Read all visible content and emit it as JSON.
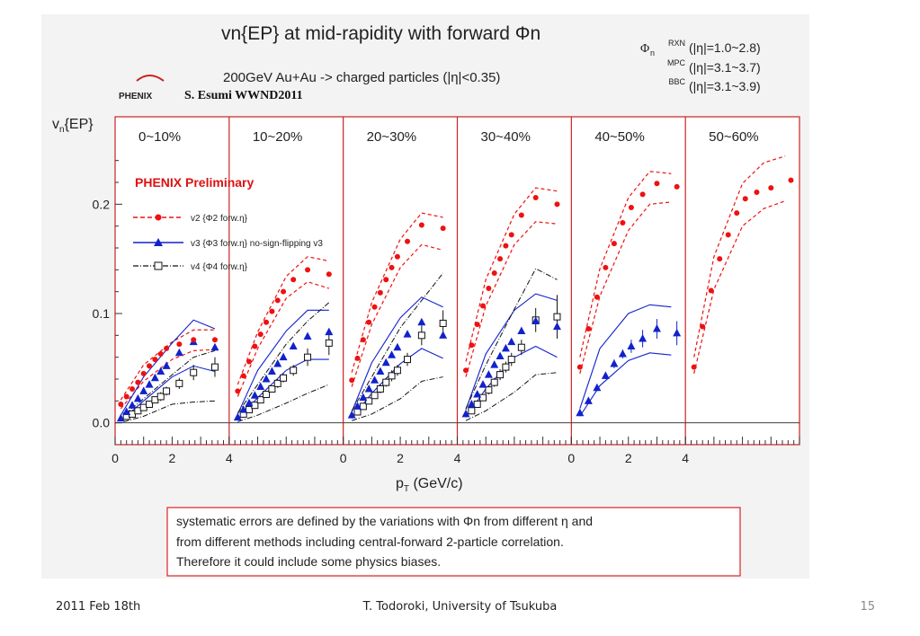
{
  "slide": {
    "footer_date": "2011 Feb 18th",
    "footer_author": "T. Todoroki, University of Tsukuba",
    "page_number": "15"
  },
  "colors": {
    "v2": "#ee1111",
    "v3": "#1122cc",
    "v4": "#111111",
    "frame": "#cc2222",
    "preliminary": "#dd1111"
  },
  "chart_data": {
    "type": "scatter",
    "title_main": "vn{EP} at mid-rapidity with forward Φn",
    "subtitle": "200GeV Au+Au -> charged particles (|η|<0.35)",
    "logo": "PHENIX",
    "credit": "S. Esumi  WWND2011",
    "detectors": [
      {
        "name": "RXN",
        "range": "(|η|=1.0~2.8)"
      },
      {
        "name": "MPC",
        "range": "(|η|=3.1~3.7)"
      },
      {
        "name": "BBC",
        "range": "(|η|=3.1~3.9)"
      }
    ],
    "ylabel": "vn{EP}",
    "xlabel": "pT (GeV/c)",
    "ylim": [
      -0.02,
      0.28
    ],
    "xlim": [
      0,
      4
    ],
    "yticks": [
      "0.0",
      "0.1",
      "0.2"
    ],
    "xticks": [
      "0",
      "2",
      "4",
      "0",
      "2",
      "4",
      "0",
      "2",
      "4"
    ],
    "preliminary": "PHENIX Preliminary",
    "legend": {
      "v2": "v2 {Φ2 forw.η}",
      "v3": "v3 {Φ3 forw.η} no-sign-flipping v3",
      "v4": "v4 {Φ4 forw.η}"
    },
    "note": [
      "systematic errors are defined by the variations with Φn from different η and",
      "from different methods including central-forward 2-particle correlation.",
      "Therefore it could include some physics biases."
    ],
    "panels": [
      {
        "label": "0~10%",
        "v2": {
          "x": [
            0.2,
            0.4,
            0.6,
            0.8,
            1.0,
            1.2,
            1.4,
            1.6,
            1.8,
            2.25,
            2.75,
            3.5
          ],
          "y": [
            0.017,
            0.024,
            0.031,
            0.037,
            0.045,
            0.052,
            0.058,
            0.063,
            0.068,
            0.072,
            0.076,
            0.076
          ]
        },
        "v2_sys": {
          "x": [
            0.2,
            1.0,
            2.0,
            2.75,
            3.5
          ],
          "lo": [
            0.013,
            0.038,
            0.058,
            0.066,
            0.067
          ],
          "hi": [
            0.021,
            0.053,
            0.074,
            0.085,
            0.085
          ]
        },
        "v3": {
          "x": [
            0.2,
            0.4,
            0.6,
            0.8,
            1.0,
            1.2,
            1.4,
            1.6,
            1.8,
            2.25,
            2.75,
            3.5
          ],
          "y": [
            0.004,
            0.01,
            0.016,
            0.022,
            0.029,
            0.035,
            0.041,
            0.047,
            0.052,
            0.064,
            0.074,
            0.069
          ]
        },
        "v3_sys": {
          "x": [
            0.2,
            1.0,
            2.0,
            2.75,
            3.5
          ],
          "lo": [
            0.002,
            0.02,
            0.042,
            0.052,
            0.047
          ],
          "hi": [
            0.007,
            0.042,
            0.073,
            0.094,
            0.086
          ]
        },
        "v4": {
          "x": [
            0.4,
            0.6,
            0.8,
            1.0,
            1.2,
            1.4,
            1.6,
            1.8,
            2.25,
            2.75,
            3.5
          ],
          "y": [
            0.006,
            0.008,
            0.011,
            0.014,
            0.017,
            0.021,
            0.024,
            0.029,
            0.036,
            0.046,
            0.051
          ],
          "err": [
            0.002,
            0.002,
            0.002,
            0.002,
            0.003,
            0.003,
            0.004,
            0.004,
            0.005,
            0.007,
            0.009
          ]
        },
        "v4_sys": {
          "x": [
            0.3,
            1.0,
            2.0,
            2.75,
            3.5
          ],
          "lo": [
            0.001,
            0.006,
            0.017,
            0.019,
            0.02
          ],
          "hi": [
            0.007,
            0.022,
            0.044,
            0.06,
            0.066
          ]
        }
      },
      {
        "label": "10~20%",
        "v2": {
          "x": [
            0.3,
            0.5,
            0.7,
            0.9,
            1.1,
            1.3,
            1.5,
            1.7,
            1.9,
            2.25,
            2.75,
            3.5
          ],
          "y": [
            0.029,
            0.043,
            0.056,
            0.07,
            0.081,
            0.092,
            0.102,
            0.112,
            0.12,
            0.131,
            0.14,
            0.136
          ]
        },
        "v2_sys": {
          "x": [
            0.3,
            1.0,
            2.0,
            2.75,
            3.5
          ],
          "lo": [
            0.024,
            0.068,
            0.114,
            0.129,
            0.123
          ],
          "hi": [
            0.035,
            0.083,
            0.134,
            0.152,
            0.148
          ]
        },
        "v3": {
          "x": [
            0.3,
            0.5,
            0.7,
            0.9,
            1.1,
            1.3,
            1.5,
            1.7,
            1.9,
            2.25,
            2.75,
            3.5
          ],
          "y": [
            0.005,
            0.012,
            0.018,
            0.025,
            0.033,
            0.04,
            0.047,
            0.054,
            0.06,
            0.07,
            0.079,
            0.083
          ]
        },
        "v3_sys": {
          "x": [
            0.3,
            1.0,
            2.0,
            2.75,
            3.5
          ],
          "lo": [
            0.003,
            0.023,
            0.048,
            0.058,
            0.058
          ],
          "hi": [
            0.008,
            0.048,
            0.084,
            0.103,
            0.103
          ]
        },
        "v4": {
          "x": [
            0.5,
            0.7,
            0.9,
            1.1,
            1.3,
            1.5,
            1.7,
            1.9,
            2.25,
            2.75,
            3.5
          ],
          "y": [
            0.008,
            0.012,
            0.016,
            0.021,
            0.026,
            0.031,
            0.036,
            0.041,
            0.048,
            0.06,
            0.073
          ],
          "err": [
            0.002,
            0.002,
            0.002,
            0.003,
            0.003,
            0.003,
            0.004,
            0.004,
            0.005,
            0.008,
            0.011
          ]
        },
        "v4_sys": {
          "x": [
            0.3,
            1.0,
            2.0,
            2.75,
            3.5
          ],
          "lo": [
            0.001,
            0.007,
            0.018,
            0.027,
            0.035
          ],
          "hi": [
            0.009,
            0.035,
            0.072,
            0.093,
            0.11
          ]
        }
      },
      {
        "label": "20~30%",
        "v2": {
          "x": [
            0.3,
            0.5,
            0.7,
            0.9,
            1.1,
            1.3,
            1.5,
            1.7,
            1.9,
            2.25,
            2.75,
            3.5
          ],
          "y": [
            0.039,
            0.059,
            0.076,
            0.092,
            0.106,
            0.119,
            0.131,
            0.142,
            0.152,
            0.166,
            0.181,
            0.178
          ]
        },
        "v2_sys": {
          "x": [
            0.3,
            1.0,
            2.0,
            2.75,
            3.5
          ],
          "lo": [
            0.033,
            0.09,
            0.142,
            0.163,
            0.158
          ],
          "hi": [
            0.046,
            0.11,
            0.168,
            0.192,
            0.188
          ]
        },
        "v3": {
          "x": [
            0.3,
            0.5,
            0.7,
            0.9,
            1.1,
            1.3,
            1.5,
            1.7,
            1.9,
            2.25,
            2.75,
            3.5
          ],
          "y": [
            0.007,
            0.015,
            0.023,
            0.031,
            0.039,
            0.047,
            0.055,
            0.062,
            0.069,
            0.081,
            0.092,
            0.08
          ]
        },
        "v3_sys": {
          "x": [
            0.3,
            1.0,
            2.0,
            2.75,
            3.5
          ],
          "lo": [
            0.004,
            0.027,
            0.054,
            0.068,
            0.059
          ],
          "hi": [
            0.01,
            0.055,
            0.096,
            0.115,
            0.106
          ]
        },
        "v4": {
          "x": [
            0.5,
            0.7,
            0.9,
            1.1,
            1.3,
            1.5,
            1.7,
            1.9,
            2.25,
            2.75,
            3.5
          ],
          "y": [
            0.01,
            0.015,
            0.02,
            0.025,
            0.031,
            0.037,
            0.043,
            0.048,
            0.058,
            0.08,
            0.091
          ],
          "err": [
            0.003,
            0.003,
            0.003,
            0.003,
            0.004,
            0.004,
            0.005,
            0.005,
            0.006,
            0.009,
            0.012
          ]
        },
        "v4_sys": {
          "x": [
            0.3,
            1.0,
            2.0,
            2.75,
            3.5
          ],
          "lo": [
            0.002,
            0.008,
            0.022,
            0.038,
            0.042
          ],
          "hi": [
            0.011,
            0.042,
            0.087,
            0.112,
            0.137
          ]
        }
      },
      {
        "label": "30~40%",
        "v2": {
          "x": [
            0.3,
            0.5,
            0.7,
            0.9,
            1.1,
            1.3,
            1.5,
            1.7,
            1.9,
            2.25,
            2.75,
            3.5
          ],
          "y": [
            0.048,
            0.071,
            0.09,
            0.107,
            0.123,
            0.137,
            0.15,
            0.162,
            0.172,
            0.19,
            0.206,
            0.2
          ]
        },
        "v2_sys": {
          "x": [
            0.3,
            1.0,
            2.0,
            2.75,
            3.5
          ],
          "lo": [
            0.042,
            0.107,
            0.163,
            0.184,
            0.182
          ],
          "hi": [
            0.056,
            0.131,
            0.191,
            0.215,
            0.212
          ]
        },
        "v3": {
          "x": [
            0.3,
            0.5,
            0.7,
            0.9,
            1.1,
            1.3,
            1.5,
            1.7,
            1.9,
            2.25,
            2.75,
            3.5
          ],
          "y": [
            0.008,
            0.017,
            0.026,
            0.035,
            0.044,
            0.053,
            0.061,
            0.068,
            0.074,
            0.084,
            0.093,
            0.088
          ]
        },
        "v3_sys": {
          "x": [
            0.3,
            1.0,
            2.0,
            2.75,
            3.5
          ],
          "lo": [
            0.005,
            0.031,
            0.06,
            0.07,
            0.06
          ],
          "hi": [
            0.012,
            0.063,
            0.103,
            0.118,
            0.112
          ]
        },
        "v4": {
          "x": [
            0.5,
            0.7,
            0.9,
            1.1,
            1.3,
            1.5,
            1.7,
            1.9,
            2.25,
            2.75,
            3.5
          ],
          "y": [
            0.011,
            0.017,
            0.023,
            0.03,
            0.037,
            0.044,
            0.051,
            0.058,
            0.069,
            0.094,
            0.097
          ],
          "err": [
            0.003,
            0.003,
            0.003,
            0.004,
            0.004,
            0.005,
            0.005,
            0.006,
            0.007,
            0.011,
            0.02
          ]
        },
        "v4_sys": {
          "x": [
            0.3,
            1.0,
            2.0,
            2.75,
            3.5
          ],
          "lo": [
            0.002,
            0.011,
            0.028,
            0.044,
            0.046
          ],
          "hi": [
            0.013,
            0.053,
            0.104,
            0.141,
            0.131
          ]
        }
      },
      {
        "label": "40~50%",
        "v2": {
          "x": [
            0.3,
            0.6,
            0.9,
            1.2,
            1.5,
            1.8,
            2.1,
            2.5,
            3.0,
            3.7
          ],
          "y": [
            0.051,
            0.086,
            0.115,
            0.142,
            0.164,
            0.183,
            0.197,
            0.209,
            0.219,
            0.216
          ]
        },
        "v2_sys": {
          "x": [
            0.3,
            1.0,
            2.0,
            2.75,
            3.5
          ],
          "lo": [
            0.045,
            0.116,
            0.176,
            0.2,
            0.202
          ],
          "hi": [
            0.06,
            0.141,
            0.206,
            0.23,
            0.228
          ]
        },
        "v3": {
          "x": [
            0.3,
            0.6,
            0.9,
            1.2,
            1.5,
            1.8,
            2.1,
            2.5,
            3.0,
            3.7
          ],
          "y": [
            0.009,
            0.02,
            0.032,
            0.043,
            0.054,
            0.063,
            0.07,
            0.077,
            0.086,
            0.082
          ],
          "err": [
            0.002,
            0.002,
            0.003,
            0.003,
            0.004,
            0.004,
            0.006,
            0.008,
            0.009,
            0.011
          ]
        },
        "v3_sys": {
          "x": [
            0.3,
            1.0,
            2.0,
            2.75,
            3.5
          ],
          "lo": [
            0.006,
            0.034,
            0.057,
            0.064,
            0.062
          ],
          "hi": [
            0.013,
            0.068,
            0.1,
            0.108,
            0.106
          ]
        }
      },
      {
        "label": "50~60%",
        "v2": {
          "x": [
            0.3,
            0.6,
            0.9,
            1.2,
            1.5,
            1.8,
            2.1,
            2.5,
            3.0,
            3.7
          ],
          "y": [
            0.051,
            0.088,
            0.121,
            0.15,
            0.172,
            0.192,
            0.205,
            0.211,
            0.215,
            0.222
          ]
        },
        "v2_sys": {
          "x": [
            0.3,
            1.0,
            2.0,
            2.75,
            3.5
          ],
          "lo": [
            0.045,
            0.122,
            0.18,
            0.196,
            0.203
          ],
          "hi": [
            0.06,
            0.152,
            0.219,
            0.238,
            0.244
          ]
        }
      }
    ]
  }
}
